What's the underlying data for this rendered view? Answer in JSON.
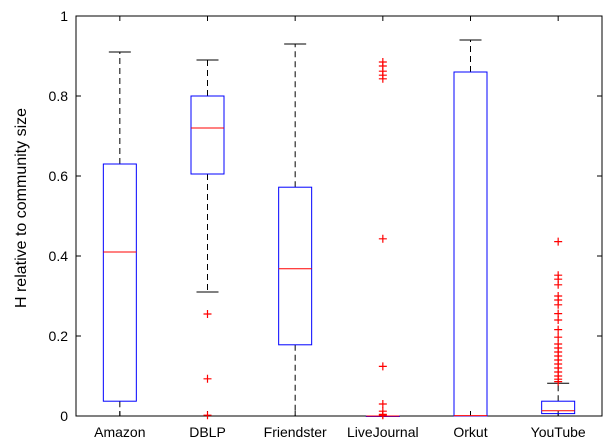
{
  "chart_data": {
    "type": "boxplot",
    "title": "",
    "xlabel": "",
    "ylabel": "H relative to community size",
    "ylim": [
      0,
      1
    ],
    "yticks": [
      0,
      0.2,
      0.4,
      0.6,
      0.8,
      1
    ],
    "ytick_labels": [
      "0",
      "0.2",
      "0.4",
      "0.6",
      "0.8",
      "1"
    ],
    "grid": false,
    "colors": {
      "box": "#0000ff",
      "median": "#ff0000",
      "whisker": "#000000",
      "outlier": "#ff0000"
    },
    "categories": [
      "Amazon",
      "DBLP",
      "Friendster",
      "LiveJournal",
      "Orkut",
      "YouTube"
    ],
    "boxes": [
      {
        "min": 0.0,
        "q1": 0.037,
        "median": 0.41,
        "q3": 0.63,
        "max": 0.91,
        "outliers": []
      },
      {
        "min": 0.31,
        "q1": 0.605,
        "median": 0.72,
        "q3": 0.8,
        "max": 0.89,
        "outliers": [
          0.255,
          0.093,
          0.002
        ]
      },
      {
        "min": 0.0,
        "q1": 0.178,
        "median": 0.368,
        "q3": 0.572,
        "max": 0.93,
        "outliers": []
      },
      {
        "min": 0.0,
        "q1": 0.0,
        "median": 0.0,
        "q3": 0.0,
        "max": 0.0,
        "outliers": [
          0.885,
          0.875,
          0.862,
          0.852,
          0.843,
          0.443,
          0.124,
          0.03,
          0.012,
          0.004,
          0.002
        ]
      },
      {
        "min": 0.0,
        "q1": 0.0,
        "median": 0.001,
        "q3": 0.86,
        "max": 0.94,
        "outliers": []
      },
      {
        "min": 0.0,
        "q1": 0.006,
        "median": 0.013,
        "q3": 0.037,
        "max": 0.082,
        "outliers": [
          0.436,
          0.352,
          0.342,
          0.328,
          0.3,
          0.29,
          0.278,
          0.256,
          0.24,
          0.216,
          0.197,
          0.18,
          0.17,
          0.16,
          0.15,
          0.14,
          0.13,
          0.12,
          0.11,
          0.1,
          0.092,
          0.086
        ]
      }
    ]
  }
}
